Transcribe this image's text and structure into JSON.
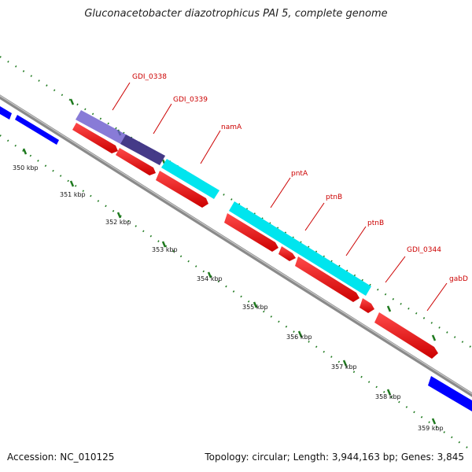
{
  "title": "Gluconacetobacter diazotrophicus PAI 5, complete genome",
  "footer": {
    "accession": "Accession: NC_010125",
    "summary": "Topology: circular; Length: 3,944,163 bp; Genes: 3,845"
  },
  "colors": {
    "backbone": "#8a8a8a",
    "ticks": "#1f7a1f",
    "label_line": "#cc0000",
    "label_text": "#cc0000",
    "feature_red": "#ff0000",
    "feature_cyan": "#00e5ee",
    "feature_blue": "#0000ff",
    "feature_purple": "#6a5acd"
  },
  "kbp_labels": [
    "350 kbp",
    "351 kbp",
    "352 kbp",
    "353 kbp",
    "354 kbp",
    "355 kbp",
    "356 kbp",
    "357 kbp",
    "358 kbp",
    "359 kbp"
  ],
  "gene_labels": [
    "GDI_0338",
    "GDI_0339",
    "namA",
    "pntA",
    "ptnB",
    "ptnB",
    "GDI_0344",
    "gabD"
  ]
}
